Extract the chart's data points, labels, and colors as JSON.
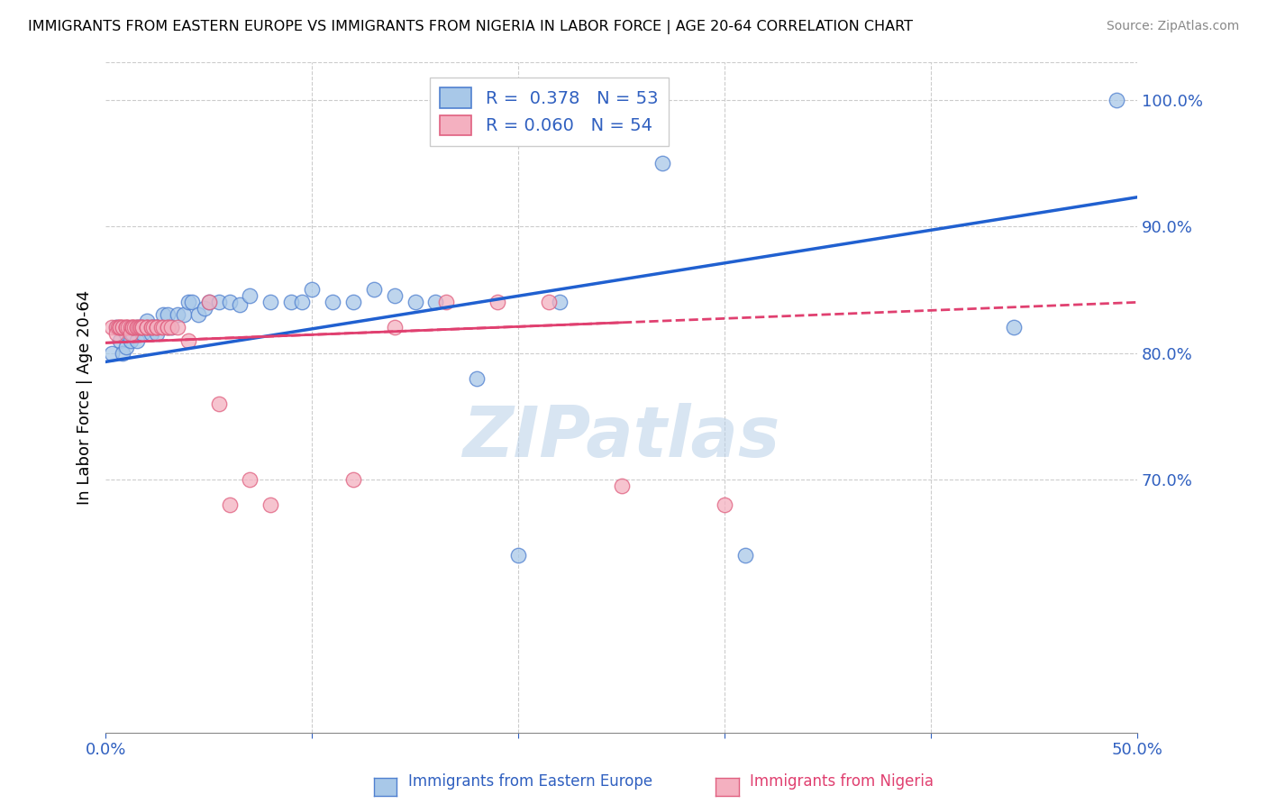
{
  "title": "IMMIGRANTS FROM EASTERN EUROPE VS IMMIGRANTS FROM NIGERIA IN LABOR FORCE | AGE 20-64 CORRELATION CHART",
  "source": "Source: ZipAtlas.com",
  "ylabel": "In Labor Force | Age 20-64",
  "xlim": [
    0.0,
    0.5
  ],
  "ylim": [
    0.5,
    1.03
  ],
  "x_ticks": [
    0.0,
    0.1,
    0.2,
    0.3,
    0.4,
    0.5
  ],
  "x_tick_labels": [
    "0.0%",
    "",
    "",
    "",
    "",
    "50.0%"
  ],
  "y_ticks_right": [
    0.7,
    0.8,
    0.9,
    1.0
  ],
  "y_tick_labels_right": [
    "70.0%",
    "80.0%",
    "90.0%",
    "100.0%"
  ],
  "R_blue": 0.378,
  "N_blue": 53,
  "R_pink": 0.06,
  "N_pink": 54,
  "blue_fill": "#a8c8e8",
  "pink_fill": "#f4b0c0",
  "blue_edge": "#5080d0",
  "pink_edge": "#e06080",
  "trend_blue_color": "#2060d0",
  "trend_pink_color": "#e04070",
  "watermark": "ZIPatlas",
  "background_color": "#ffffff",
  "grid_color": "#cccccc",
  "blue_scatter_x": [
    0.003,
    0.005,
    0.007,
    0.008,
    0.01,
    0.01,
    0.012,
    0.013,
    0.015,
    0.015,
    0.017,
    0.018,
    0.018,
    0.02,
    0.02,
    0.022,
    0.022,
    0.023,
    0.025,
    0.025,
    0.025,
    0.028,
    0.03,
    0.03,
    0.032,
    0.035,
    0.038,
    0.04,
    0.042,
    0.045,
    0.048,
    0.05,
    0.055,
    0.06,
    0.065,
    0.07,
    0.08,
    0.09,
    0.095,
    0.1,
    0.11,
    0.12,
    0.13,
    0.14,
    0.15,
    0.16,
    0.18,
    0.2,
    0.22,
    0.27,
    0.31,
    0.44,
    0.49
  ],
  "blue_scatter_y": [
    0.8,
    0.82,
    0.81,
    0.8,
    0.815,
    0.805,
    0.81,
    0.815,
    0.82,
    0.81,
    0.82,
    0.82,
    0.815,
    0.82,
    0.825,
    0.815,
    0.82,
    0.82,
    0.82,
    0.82,
    0.815,
    0.83,
    0.82,
    0.83,
    0.82,
    0.83,
    0.83,
    0.84,
    0.84,
    0.83,
    0.835,
    0.84,
    0.84,
    0.84,
    0.838,
    0.845,
    0.84,
    0.84,
    0.84,
    0.85,
    0.84,
    0.84,
    0.85,
    0.845,
    0.84,
    0.84,
    0.78,
    0.64,
    0.84,
    0.95,
    0.64,
    0.82,
    1.0
  ],
  "pink_scatter_x": [
    0.003,
    0.005,
    0.005,
    0.006,
    0.007,
    0.007,
    0.007,
    0.008,
    0.008,
    0.01,
    0.01,
    0.01,
    0.011,
    0.012,
    0.012,
    0.013,
    0.013,
    0.013,
    0.014,
    0.015,
    0.015,
    0.016,
    0.017,
    0.017,
    0.018,
    0.018,
    0.02,
    0.02,
    0.02,
    0.022,
    0.022,
    0.023,
    0.025,
    0.025,
    0.025,
    0.027,
    0.028,
    0.03,
    0.03,
    0.032,
    0.035,
    0.04,
    0.05,
    0.055,
    0.06,
    0.07,
    0.08,
    0.12,
    0.14,
    0.165,
    0.19,
    0.215,
    0.25,
    0.3
  ],
  "pink_scatter_y": [
    0.82,
    0.82,
    0.815,
    0.82,
    0.82,
    0.82,
    0.82,
    0.82,
    0.82,
    0.82,
    0.82,
    0.82,
    0.82,
    0.82,
    0.815,
    0.82,
    0.82,
    0.82,
    0.82,
    0.82,
    0.82,
    0.82,
    0.82,
    0.82,
    0.82,
    0.82,
    0.82,
    0.82,
    0.82,
    0.82,
    0.82,
    0.82,
    0.82,
    0.82,
    0.82,
    0.82,
    0.82,
    0.82,
    0.82,
    0.82,
    0.82,
    0.81,
    0.84,
    0.76,
    0.68,
    0.7,
    0.68,
    0.7,
    0.82,
    0.84,
    0.84,
    0.84,
    0.695,
    0.68
  ],
  "trend_blue_x0": 0.0,
  "trend_blue_y0": 0.793,
  "trend_blue_x1": 0.5,
  "trend_blue_y1": 0.923,
  "trend_pink_x0": 0.0,
  "trend_pink_y0": 0.808,
  "trend_pink_x1": 0.5,
  "trend_pink_y1": 0.84
}
